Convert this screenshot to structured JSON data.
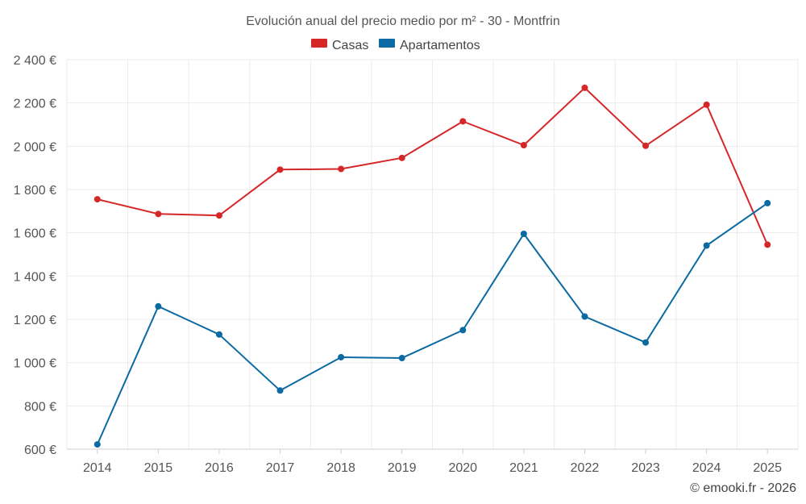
{
  "chart_data": {
    "type": "line",
    "title": "Evolución anual del precio medio por m² - 30 - Montfrin",
    "categories": [
      "2014",
      "2015",
      "2016",
      "2017",
      "2018",
      "2019",
      "2020",
      "2021",
      "2022",
      "2023",
      "2024",
      "2025"
    ],
    "series": [
      {
        "name": "Casas",
        "color": "#d62728",
        "values": [
          1755,
          1687,
          1680,
          1892,
          1895,
          1946,
          2115,
          2005,
          2270,
          2002,
          2192,
          1545
        ]
      },
      {
        "name": "Apartamentos",
        "color": "#0a6aa1",
        "values": [
          622,
          1260,
          1130,
          871,
          1025,
          1021,
          1150,
          1595,
          1213,
          1093,
          1541,
          1737
        ]
      }
    ],
    "ylim": [
      600,
      2400
    ],
    "yticks": [
      600,
      800,
      1000,
      1200,
      1400,
      1600,
      1800,
      2000,
      2200,
      2400
    ],
    "ytick_labels": [
      "600 €",
      "800 €",
      "1 000 €",
      "1 200 €",
      "1 400 €",
      "1 600 €",
      "1 800 €",
      "2 000 €",
      "2 200 €",
      "2 400 €"
    ],
    "xlabel": "",
    "ylabel": "",
    "grid": true,
    "legend": "top-center"
  },
  "credit": "© emooki.fr - 2026"
}
